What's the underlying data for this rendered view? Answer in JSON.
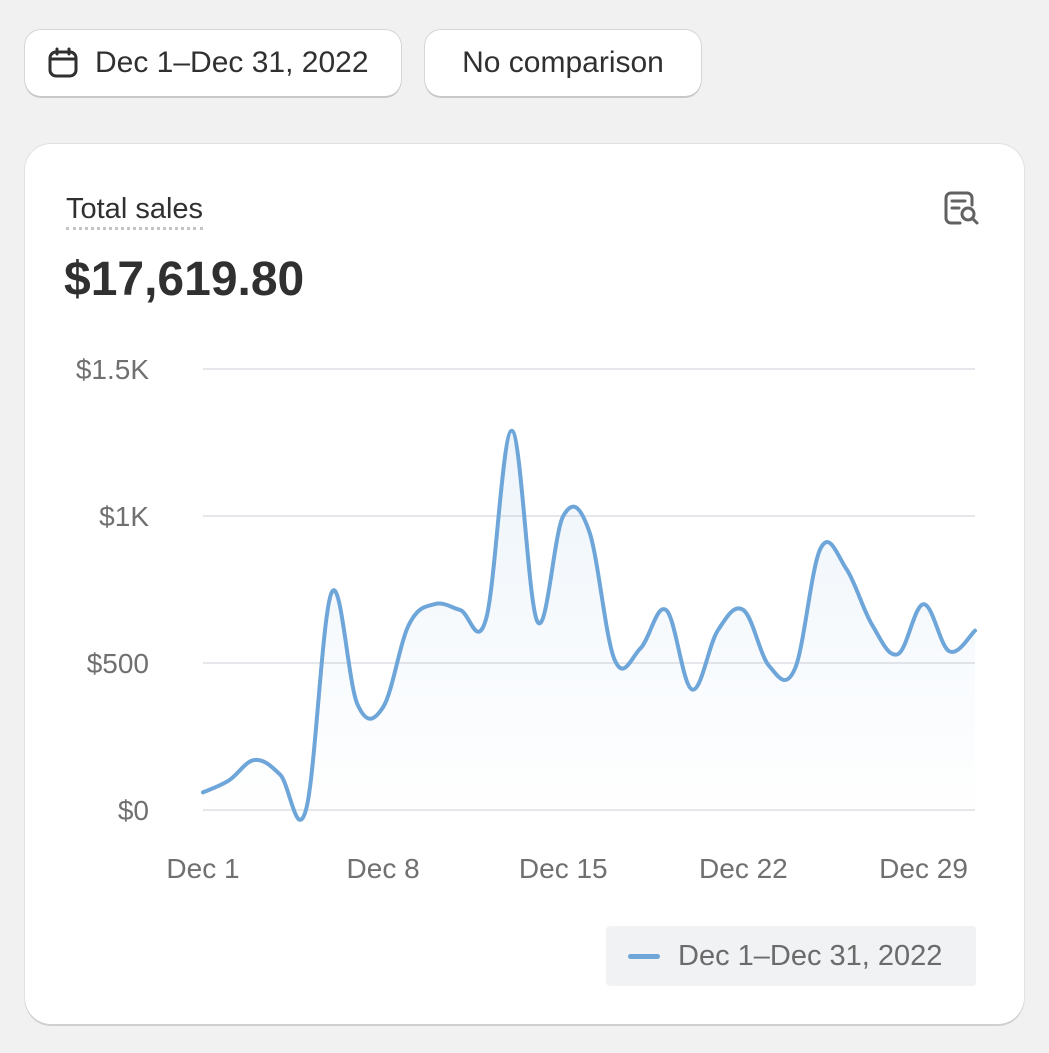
{
  "toolbar": {
    "date_range_label": "Dec 1–Dec 31, 2022",
    "comparison_label": "No comparison"
  },
  "card": {
    "metric_title": "Total sales",
    "metric_value": "$17,619.80"
  },
  "colors": {
    "line": "#6ea6d9",
    "gridline": "#e6e7ea",
    "axis_text": "#707070"
  },
  "icons": {
    "date_button": "calendar-icon",
    "explore": "explore-report-icon"
  },
  "chart_data": {
    "type": "line",
    "title": "",
    "xlabel": "",
    "ylabel": "",
    "ylim": [
      0,
      1500
    ],
    "y_ticks": [
      {
        "value": 0,
        "label": "$0"
      },
      {
        "value": 500,
        "label": "$500"
      },
      {
        "value": 1000,
        "label": "$1K"
      },
      {
        "value": 1500,
        "label": "$1.5K"
      }
    ],
    "x_ticks": [
      {
        "day": 1,
        "label": "Dec 1"
      },
      {
        "day": 8,
        "label": "Dec 8"
      },
      {
        "day": 15,
        "label": "Dec 15"
      },
      {
        "day": 22,
        "label": "Dec 22"
      },
      {
        "day": 29,
        "label": "Dec 29"
      }
    ],
    "grid": true,
    "legend_position": "bottom-right",
    "series": [
      {
        "name": "Dec 1–Dec 31, 2022",
        "color": "#6ea6d9",
        "x": [
          1,
          2,
          3,
          4,
          5,
          6,
          7,
          8,
          9,
          10,
          11,
          12,
          13,
          14,
          15,
          16,
          17,
          18,
          19,
          20,
          21,
          22,
          23,
          24,
          25,
          26,
          27,
          28,
          29,
          30,
          31
        ],
        "values": [
          60,
          100,
          170,
          120,
          0,
          740,
          360,
          350,
          630,
          700,
          680,
          650,
          1290,
          640,
          1000,
          950,
          510,
          550,
          680,
          410,
          610,
          680,
          490,
          480,
          890,
          820,
          630,
          530,
          700,
          540,
          610
        ]
      }
    ]
  }
}
